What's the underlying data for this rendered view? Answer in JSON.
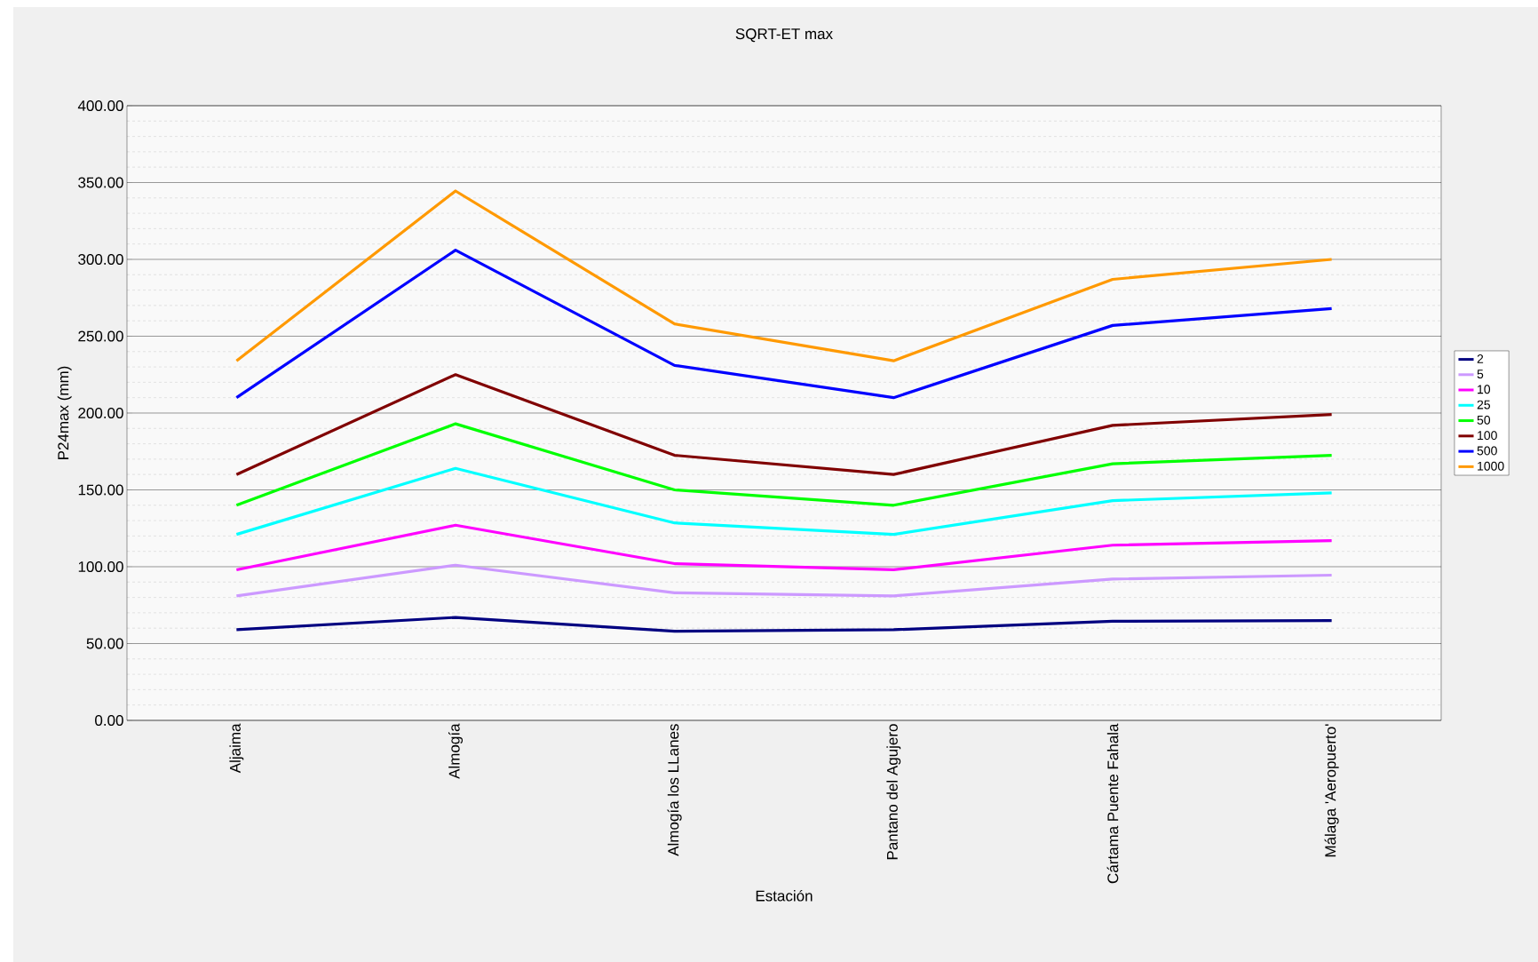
{
  "chart_data": {
    "type": "line",
    "title": "SQRT-ET max",
    "xlabel": "Estación",
    "ylabel": "P24max (mm)",
    "categories": [
      "Aljaima",
      "Almogía",
      "Almogía los LLanes",
      "Pantano del Agujero",
      "Cártama Puente Fahala",
      "Málaga 'Aeropuerto'"
    ],
    "ylim": [
      0,
      400
    ],
    "yticks": [
      {
        "value": 0,
        "label": "0.00"
      },
      {
        "value": 50,
        "label": "50.00"
      },
      {
        "value": 100,
        "label": "100.00"
      },
      {
        "value": 150,
        "label": "150.00"
      },
      {
        "value": 200,
        "label": "200.00"
      },
      {
        "value": 250,
        "label": "250.00"
      },
      {
        "value": 300,
        "label": "300.00"
      },
      {
        "value": 350,
        "label": "350.00"
      },
      {
        "value": 400,
        "label": "400.00"
      }
    ],
    "grid": "y",
    "legend": "right",
    "marker": "none",
    "line_style": "solid",
    "series": [
      {
        "name": "2",
        "color": "#000080",
        "values": [
          59,
          67,
          58,
          59,
          64.5,
          65
        ]
      },
      {
        "name": "5",
        "color": "#cc99ff",
        "values": [
          81,
          101,
          83,
          81,
          92,
          94.5
        ]
      },
      {
        "name": "10",
        "color": "#ff00ff",
        "values": [
          98,
          127,
          102,
          98,
          114,
          117
        ]
      },
      {
        "name": "25",
        "color": "#00ffff",
        "values": [
          121,
          164,
          128.5,
          121,
          143,
          148
        ]
      },
      {
        "name": "50",
        "color": "#00ff00",
        "values": [
          140,
          193,
          150,
          140,
          167,
          172.5
        ]
      },
      {
        "name": "100",
        "color": "#800000",
        "values": [
          160,
          225,
          172.5,
          160,
          192,
          199
        ]
      },
      {
        "name": "500",
        "color": "#0000ff",
        "values": [
          210,
          306,
          231,
          210,
          257,
          268
        ]
      },
      {
        "name": "1000",
        "color": "#ff9900",
        "values": [
          234,
          344.5,
          258,
          234,
          287,
          300
        ]
      }
    ]
  }
}
